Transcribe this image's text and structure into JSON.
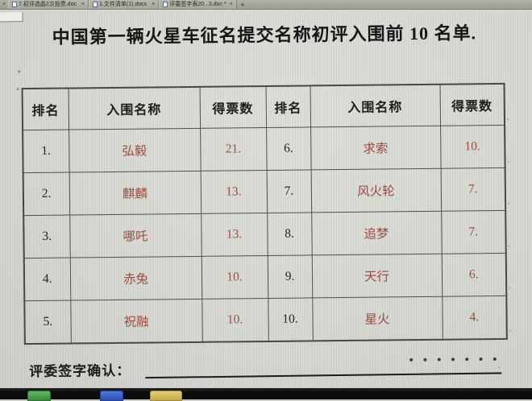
{
  "tab_bar": {
    "leading_close": "×",
    "tabs": [
      {
        "label": "7.初评选晶2次投票.doc",
        "modified": "",
        "close": "×"
      },
      {
        "label": "1.文件清单(1).docx",
        "modified": "",
        "close": "×"
      },
      {
        "label": "评委签字表20...3.doc",
        "modified": "*",
        "close": "×"
      }
    ],
    "new_tab_label": "+"
  },
  "document": {
    "title": "中国第一辆火星车征名提交名称初评入围前 10 名单.",
    "table": {
      "headers": [
        "排名",
        "入围名称",
        "得票数",
        "排名",
        "入围名称",
        "得票数"
      ],
      "rows": [
        [
          "1.",
          "弘毅",
          "21.",
          "6.",
          "求索",
          "10."
        ],
        [
          "2.",
          "麒麟",
          "13.",
          "7.",
          "风火轮",
          "7."
        ],
        [
          "3.",
          "哪吒",
          "13.",
          "8.",
          "追梦",
          "7."
        ],
        [
          "4.",
          "赤兔",
          "10.",
          "9.",
          "天行",
          "6."
        ],
        [
          "5.",
          "祝融",
          "10.",
          "10.",
          "星火",
          "4."
        ]
      ]
    },
    "footer": {
      "signature_label": "评委签字确认：",
      "dots": "•••••••",
      "dots_mark": "."
    }
  },
  "decorations": {
    "row_end_mark": ","
  },
  "colors": {
    "accent_red": "#9c4b43",
    "text_black": "#1f1f1f",
    "screen_bg": "#d7d8d2",
    "tabbar_bg": "#a3a89b",
    "table_border": "#4f4f4f",
    "taskbar_bg": "#0b0b0b",
    "taskbar_icon_green": "#4fa24f",
    "taskbar_icon_blue": "#3a62c8",
    "taskbar_icon_yellow": "#d9c05e"
  }
}
